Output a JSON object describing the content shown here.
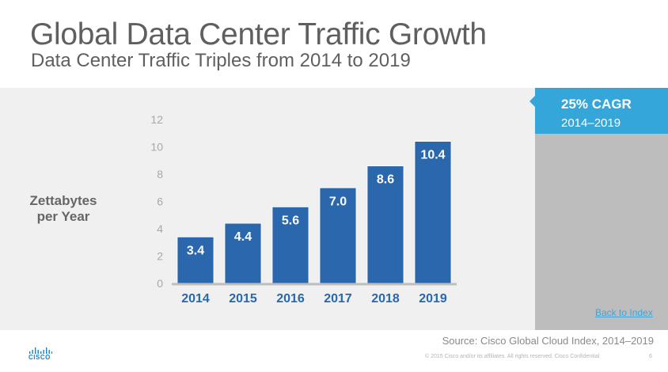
{
  "header": {
    "title": "Global Data Center Traffic Growth",
    "subtitle": "Data Center Traffic Triples from 2014 to 2019"
  },
  "callout": {
    "title": "25% CAGR",
    "period": "2014–2019"
  },
  "links": {
    "back_to_index": "Back to Index"
  },
  "footer": {
    "source": "Source: Cisco Global Cloud Index, 2014–2019",
    "copyright": "© 2015  Cisco and/or its affiliates. All rights reserved.   Cisco Confidential",
    "page_number": "6",
    "logo_text": "CISCO"
  },
  "colors": {
    "bar": "#2a67ad",
    "callout": "#34a6d9",
    "side_panel": "#bdbdbd",
    "panel": "#f0f0f0",
    "link": "#3aa6dd"
  },
  "chart_data": {
    "type": "bar",
    "title": "Global Data Center Traffic Growth",
    "xlabel": "",
    "ylabel": "Zettabytes per Year",
    "categories": [
      "2014",
      "2015",
      "2016",
      "2017",
      "2018",
      "2019"
    ],
    "values": [
      3.4,
      4.4,
      5.6,
      7.0,
      8.6,
      10.4
    ],
    "data_labels": [
      "3.4",
      "4.4",
      "5.6",
      "7.0",
      "8.6",
      "10.4"
    ],
    "ylim": [
      0,
      12
    ],
    "yticks": [
      0,
      2,
      4,
      6,
      8,
      10,
      12
    ],
    "grid": false,
    "legend": "none"
  }
}
